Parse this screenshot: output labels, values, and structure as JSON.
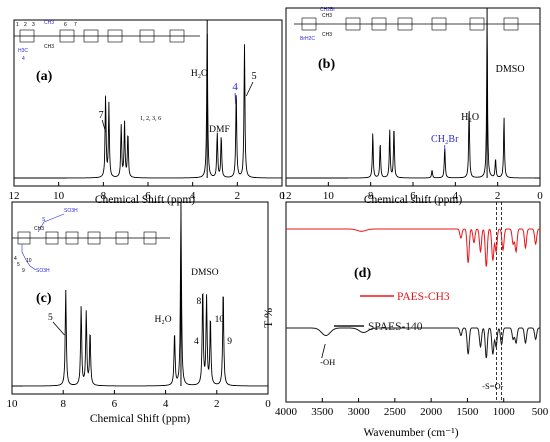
{
  "chart_data": [
    {
      "panel": "(a)",
      "type": "line",
      "xlabel": "Chemical Shift (ppm)",
      "ylabel": "",
      "xlim": [
        12,
        0
      ],
      "xticks": [
        "12",
        "10",
        "8",
        "6",
        "4",
        "2",
        "0"
      ],
      "grid": false,
      "series": [
        {
          "peaks": [
            {
              "ppm": 7.9,
              "height": 0.55
            },
            {
              "ppm": 7.75,
              "height": 0.5
            },
            {
              "ppm": 7.2,
              "height": 0.35
            },
            {
              "ppm": 7.05,
              "height": 0.38
            },
            {
              "ppm": 6.9,
              "height": 0.3
            },
            {
              "ppm": 3.35,
              "height": 1.05
            },
            {
              "ppm": 2.9,
              "height": 0.3
            },
            {
              "ppm": 2.72,
              "height": 0.28
            },
            {
              "ppm": 2.05,
              "height": 0.6
            },
            {
              "ppm": 1.68,
              "height": 0.9
            }
          ]
        }
      ],
      "annotations": [
        {
          "text": "7",
          "ppm": 8.1
        },
        {
          "text": "1, 2, 3, 6",
          "ppm": 6.6
        },
        {
          "text": "H2O",
          "ppm": 3.7
        },
        {
          "text": "DMF",
          "ppm": 2.8
        },
        {
          "text": "4",
          "ppm": 2.1
        },
        {
          "text": "5",
          "ppm": 1.25
        }
      ],
      "structure_labels": [
        "1",
        "2",
        "3",
        "CH3",
        "CH3",
        "6",
        "7",
        "H3C",
        "4"
      ]
    },
    {
      "panel": "(b)",
      "type": "line",
      "xlabel": "Chemical shift (ppm)",
      "ylabel": "",
      "xlim": [
        12,
        0
      ],
      "xticks": [
        "12",
        "10",
        "8",
        "6",
        "4",
        "2",
        "0"
      ],
      "grid": false,
      "series": [
        {
          "peaks": [
            {
              "ppm": 7.9,
              "height": 0.28
            },
            {
              "ppm": 7.55,
              "height": 0.22
            },
            {
              "ppm": 7.1,
              "height": 0.3
            },
            {
              "ppm": 6.9,
              "height": 0.32
            },
            {
              "ppm": 5.1,
              "height": 0.05
            },
            {
              "ppm": 4.5,
              "height": 0.2
            },
            {
              "ppm": 3.35,
              "height": 0.45
            },
            {
              "ppm": 2.5,
              "height": 1.0
            },
            {
              "ppm": 2.1,
              "height": 0.12
            },
            {
              "ppm": 1.7,
              "height": 0.38
            }
          ]
        }
      ],
      "annotations": [
        {
          "text": "CH2Br",
          "ppm": 4.5
        },
        {
          "text": "H2O",
          "ppm": 3.3
        },
        {
          "text": "DMSO",
          "ppm": 1.6
        }
      ],
      "structure_labels": [
        "CH2Br",
        "CH3",
        "CH3",
        "BrH2C"
      ]
    },
    {
      "panel": "(c)",
      "type": "line",
      "xlabel": "Chemical Shift (ppm)",
      "ylabel": "",
      "xlim": [
        10,
        0
      ],
      "xticks": [
        "10",
        "8",
        "6",
        "4",
        "2",
        "0"
      ],
      "grid": false,
      "series": [
        {
          "peaks": [
            {
              "ppm": 7.9,
              "height": 0.55
            },
            {
              "ppm": 7.3,
              "height": 0.45
            },
            {
              "ppm": 7.1,
              "height": 0.42
            },
            {
              "ppm": 6.95,
              "height": 0.3
            },
            {
              "ppm": 3.65,
              "height": 0.3
            },
            {
              "ppm": 3.4,
              "height": 1.0
            },
            {
              "ppm": 2.55,
              "height": 0.55
            },
            {
              "ppm": 2.4,
              "height": 0.5
            },
            {
              "ppm": 2.25,
              "height": 0.38
            },
            {
              "ppm": 1.75,
              "height": 0.55
            }
          ]
        }
      ],
      "annotations": [
        {
          "text": "5",
          "ppm": 8.5
        },
        {
          "text": "H2O",
          "ppm": 4.1
        },
        {
          "text": "DMSO",
          "ppm": 2.7
        },
        {
          "text": "8",
          "ppm": 2.7
        },
        {
          "text": "10",
          "ppm": 1.9
        },
        {
          "text": "4",
          "ppm": 2.8
        },
        {
          "text": "9",
          "ppm": 1.5
        }
      ],
      "structure_labels": [
        "SO3H",
        "S",
        "CH3",
        "4",
        "5",
        "10",
        "9",
        "SO3H"
      ]
    },
    {
      "panel": "(d)",
      "type": "line",
      "xlabel": "Wavenumber (cm⁻¹)",
      "ylabel": "T %",
      "xlim": [
        4000,
        500
      ],
      "xticks": [
        "4000",
        "3500",
        "3000",
        "2500",
        "2000",
        "1500",
        "1000",
        "500"
      ],
      "grid": false,
      "legend": "center-right",
      "reference_lines": [
        1100,
        1030
      ],
      "series": [
        {
          "name": "PAES-CH3",
          "color": "#e8161b",
          "offset": 0.0,
          "dips": [
            {
              "wn": 2960,
              "depth": 0.03
            },
            {
              "wn": 1590,
              "depth": 0.12
            },
            {
              "wn": 1490,
              "depth": 0.45
            },
            {
              "wn": 1410,
              "depth": 0.18
            },
            {
              "wn": 1320,
              "depth": 0.3
            },
            {
              "wn": 1240,
              "depth": 0.5
            },
            {
              "wn": 1150,
              "depth": 0.42
            },
            {
              "wn": 1105,
              "depth": 0.3
            },
            {
              "wn": 1010,
              "depth": 0.28
            },
            {
              "wn": 870,
              "depth": 0.2
            },
            {
              "wn": 830,
              "depth": 0.3
            },
            {
              "wn": 700,
              "depth": 0.25
            },
            {
              "wn": 560,
              "depth": 0.2
            }
          ]
        },
        {
          "name": "SPAES-140",
          "color": "#1a1a1a",
          "offset": 0.55,
          "dips": [
            {
              "wn": 3450,
              "depth": 0.1
            },
            {
              "wn": 2930,
              "depth": 0.06
            },
            {
              "wn": 1590,
              "depth": 0.1
            },
            {
              "wn": 1490,
              "depth": 0.35
            },
            {
              "wn": 1320,
              "depth": 0.25
            },
            {
              "wn": 1240,
              "depth": 0.4
            },
            {
              "wn": 1150,
              "depth": 0.35
            },
            {
              "wn": 1105,
              "depth": 0.25
            },
            {
              "wn": 1030,
              "depth": 0.22
            },
            {
              "wn": 870,
              "depth": 0.15
            },
            {
              "wn": 830,
              "depth": 0.2
            },
            {
              "wn": 700,
              "depth": 0.2
            },
            {
              "wn": 560,
              "depth": 0.15
            }
          ]
        }
      ],
      "annotations": [
        {
          "text": "-OH",
          "wn": 3480
        },
        {
          "text": "-S=O-",
          "wn": 1150
        }
      ]
    }
  ]
}
